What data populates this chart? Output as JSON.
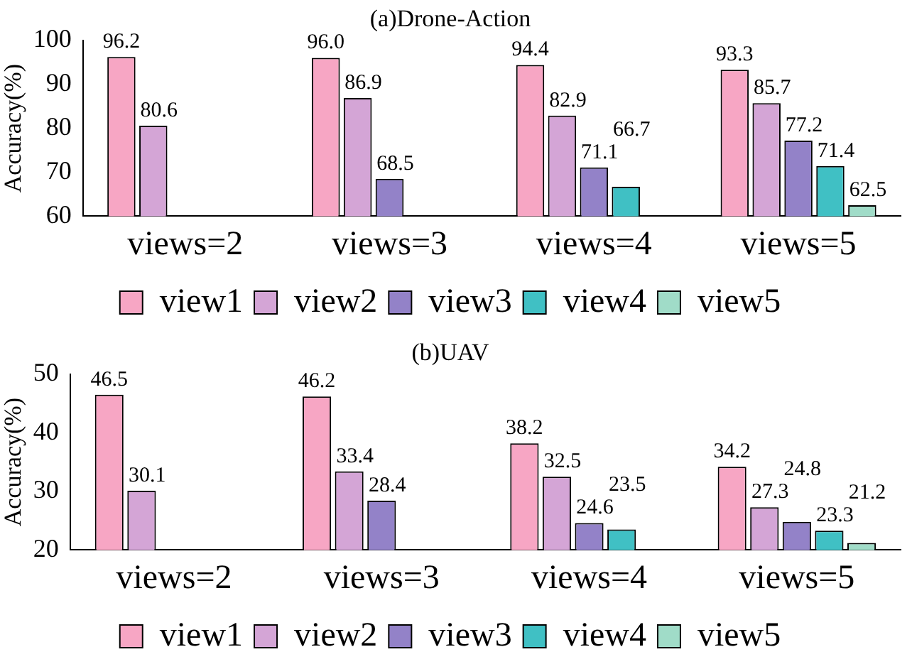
{
  "chart_data": [
    {
      "type": "bar",
      "title": "(a)Drone-Action",
      "ylabel": "Accuracy(%)",
      "categories": [
        "views=2",
        "views=3",
        "views=4",
        "views=5"
      ],
      "series": [
        {
          "name": "view1",
          "color": "#f7a6c4",
          "values": [
            96.2,
            96.0,
            94.4,
            93.3
          ],
          "value_labels": [
            "96.2",
            "96.0",
            "94.4",
            "93.3"
          ]
        },
        {
          "name": "view2",
          "color": "#d4a5d6",
          "values": [
            80.6,
            86.9,
            82.9,
            85.7
          ],
          "value_labels": [
            "80.6",
            "86.9",
            "82.9",
            "85.7"
          ]
        },
        {
          "name": "view3",
          "color": "#9382c8",
          "values": [
            null,
            68.5,
            71.1,
            77.2
          ],
          "value_labels": [
            null,
            "68.5",
            "71.1",
            "77.2"
          ]
        },
        {
          "name": "view4",
          "color": "#40c0c4",
          "values": [
            null,
            null,
            66.7,
            71.4
          ],
          "value_labels": [
            null,
            null,
            "66.7",
            "71.4"
          ]
        },
        {
          "name": "view5",
          "color": "#a0dcc8",
          "values": [
            null,
            null,
            null,
            62.5
          ],
          "value_labels": [
            null,
            null,
            null,
            "62.5"
          ]
        }
      ],
      "ylim": [
        60,
        100
      ],
      "yticks": [
        60,
        70,
        80,
        90,
        100
      ],
      "grid": false,
      "legend": "bottom"
    },
    {
      "type": "bar",
      "title": "(b)UAV",
      "ylabel": "Accuracy(%)",
      "categories": [
        "views=2",
        "views=3",
        "views=4",
        "views=5"
      ],
      "series": [
        {
          "name": "view1",
          "color": "#f7a6c4",
          "values": [
            46.5,
            46.2,
            38.2,
            34.2
          ],
          "value_labels": [
            "46.5",
            "46.2",
            "38.2",
            "34.2"
          ]
        },
        {
          "name": "view2",
          "color": "#d4a5d6",
          "values": [
            30.1,
            33.4,
            32.5,
            27.3
          ],
          "value_labels": [
            "30.1",
            "33.4",
            "32.5",
            "27.3"
          ]
        },
        {
          "name": "view3",
          "color": "#9382c8",
          "values": [
            null,
            28.4,
            24.6,
            24.8
          ],
          "value_labels": [
            null,
            "28.4",
            "24.6",
            "24.8"
          ]
        },
        {
          "name": "view4",
          "color": "#40c0c4",
          "values": [
            null,
            null,
            23.5,
            23.3
          ],
          "value_labels": [
            null,
            null,
            "23.5",
            "23.3"
          ]
        },
        {
          "name": "view5",
          "color": "#a0dcc8",
          "values": [
            null,
            null,
            null,
            21.2
          ],
          "value_labels": [
            null,
            null,
            null,
            "21.2"
          ]
        }
      ],
      "ylim": [
        20,
        50
      ],
      "yticks": [
        20,
        30,
        40,
        50
      ],
      "grid": false,
      "legend": "bottom"
    }
  ]
}
